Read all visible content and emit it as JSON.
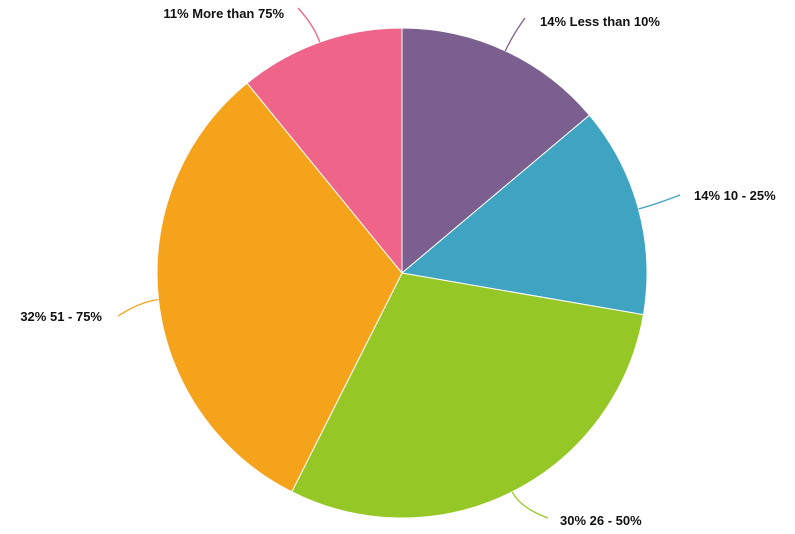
{
  "chart_data": {
    "type": "pie",
    "start_angle": "12 o'clock",
    "direction": "clockwise",
    "slices": [
      {
        "label": "Less than 10%",
        "percent": 14,
        "percent_text": "14%",
        "color": "#7a5f8f"
      },
      {
        "label": "10 - 25%",
        "percent": 14,
        "percent_text": "14%",
        "color": "#3ea4c2"
      },
      {
        "label": "26 - 50%",
        "percent": 30,
        "percent_text": "30%",
        "color": "#95c826"
      },
      {
        "label": "51 - 75%",
        "percent": 32,
        "percent_text": "32%",
        "color": "#f5a31b"
      },
      {
        "label": "More than 75%",
        "percent": 11,
        "percent_text": "11%",
        "color": "#ee6589"
      }
    ]
  }
}
